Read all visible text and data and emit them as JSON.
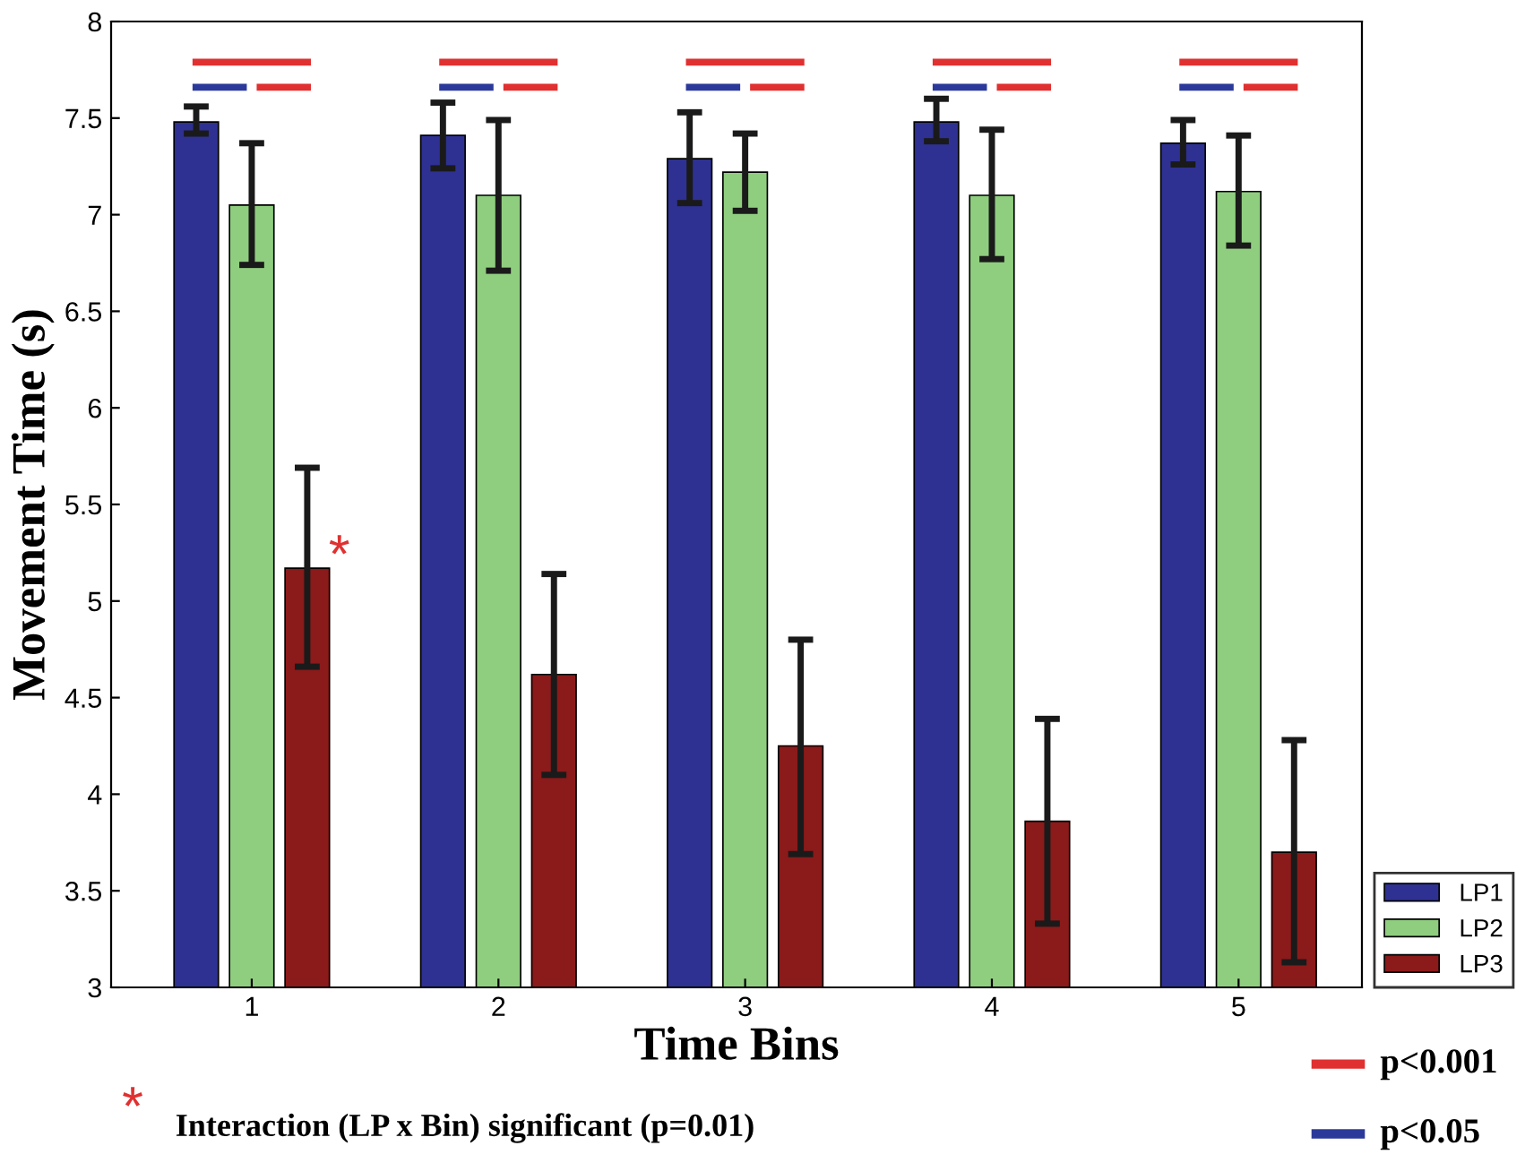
{
  "chart_data": {
    "type": "bar",
    "xlabel": "Time Bins",
    "ylabel": "Movement Time (s)",
    "categories": [
      "1",
      "2",
      "3",
      "4",
      "5"
    ],
    "series": [
      {
        "name": "LP1",
        "color": "#2e3192",
        "values": [
          7.48,
          7.41,
          7.29,
          7.48,
          7.37
        ],
        "errors": [
          [
            7.42,
            7.56
          ],
          [
            7.24,
            7.58
          ],
          [
            7.06,
            7.53
          ],
          [
            7.38,
            7.6
          ],
          [
            7.26,
            7.49
          ]
        ]
      },
      {
        "name": "LP2",
        "color": "#8fce7f",
        "values": [
          7.05,
          7.1,
          7.22,
          7.1,
          7.12
        ],
        "errors": [
          [
            6.74,
            7.37
          ],
          [
            6.71,
            7.49
          ],
          [
            7.02,
            7.42
          ],
          [
            6.77,
            7.44
          ],
          [
            6.84,
            7.41
          ]
        ]
      },
      {
        "name": "LP3",
        "color": "#8b1a1a",
        "values": [
          5.17,
          4.62,
          4.25,
          3.86,
          3.7
        ],
        "errors": [
          [
            4.66,
            5.69
          ],
          [
            4.1,
            5.14
          ],
          [
            3.69,
            4.8
          ],
          [
            3.33,
            4.39
          ],
          [
            3.13,
            4.28
          ]
        ]
      }
    ],
    "ylim": [
      3,
      8
    ],
    "yticks": [
      3,
      3.5,
      4,
      4.5,
      5,
      5.5,
      6,
      6.5,
      7,
      7.5,
      8
    ],
    "legend": "bottom right",
    "grid": false,
    "annotations": [
      "*",
      "p<0.001",
      "p<0.05",
      "*",
      "Interaction (LP x Bin) significant (p=0.01)"
    ]
  }
}
